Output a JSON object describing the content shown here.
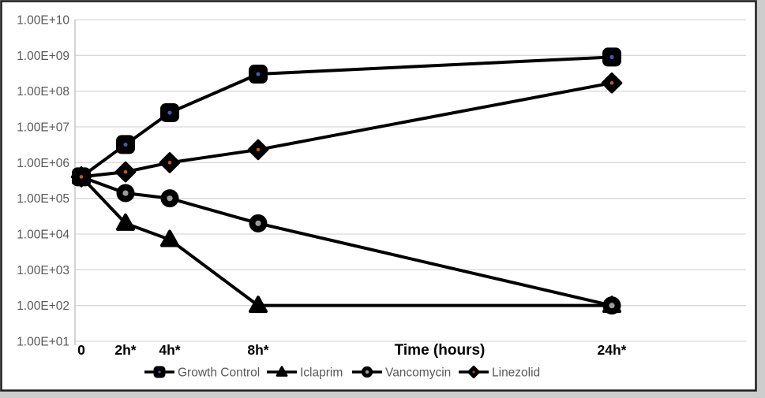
{
  "chart_data": {
    "type": "line",
    "title": "",
    "xlabel": "Time (hours)",
    "ylabel": "",
    "grid": true,
    "legend_position": "bottom",
    "y_axis": {
      "scale": "log",
      "ylim": [
        10,
        10000000000
      ],
      "tick_labels": [
        "1.00E+10",
        "1.00E+09",
        "1.00E+08",
        "1.00E+07",
        "1.00E+06",
        "1.00E+05",
        "1.00E+04",
        "1.00E+03",
        "1.00E+02",
        "1.00E+01"
      ],
      "tick_values": [
        10000000000,
        1000000000,
        100000000,
        10000000,
        1000000,
        100000,
        10000,
        1000,
        100,
        10
      ]
    },
    "x_axis": {
      "unit": "hours",
      "ticks": [
        {
          "label": "0",
          "t": 0
        },
        {
          "label": "2h*",
          "t": 2
        },
        {
          "label": "4h*",
          "t": 4
        },
        {
          "label": "8h*",
          "t": 8
        },
        {
          "label": "24h*",
          "t": 24
        }
      ]
    },
    "series": [
      {
        "name": "Growth Control",
        "marker": "square",
        "color": "#000000",
        "dot_color": "#3f5ba9",
        "x": [
          0,
          2,
          4,
          8,
          24
        ],
        "values": [
          400000,
          3200000,
          25000000,
          300000000,
          900000000
        ]
      },
      {
        "name": "Iclaprim",
        "marker": "triangle",
        "color": "#000000",
        "dot_color": null,
        "x": [
          0,
          2,
          4,
          8,
          24
        ],
        "values": [
          400000,
          20000,
          7000,
          100,
          100
        ]
      },
      {
        "name": "Vancomycin",
        "marker": "circle",
        "color": "#000000",
        "dot_color": "#9b9b9b",
        "x": [
          0,
          2,
          4,
          8,
          24
        ],
        "values": [
          400000,
          140000,
          100000,
          20000,
          100
        ]
      },
      {
        "name": "Linezolid",
        "marker": "diamond",
        "color": "#000000",
        "dot_color": "#c55a11",
        "x": [
          0,
          2,
          4,
          8,
          24
        ],
        "values": [
          400000,
          550000,
          1000000,
          2300000,
          170000000
        ]
      }
    ]
  },
  "colors": {
    "background": "#ffffff",
    "frame_border": "#1c1c1c",
    "outer_strip": "#cdcdcd",
    "gridline": "#d9d9d9",
    "axis_line": "#bdbdbd",
    "y_tick_text": "#595959",
    "x_tick_text": "#000000",
    "legend_text": "#595959"
  }
}
